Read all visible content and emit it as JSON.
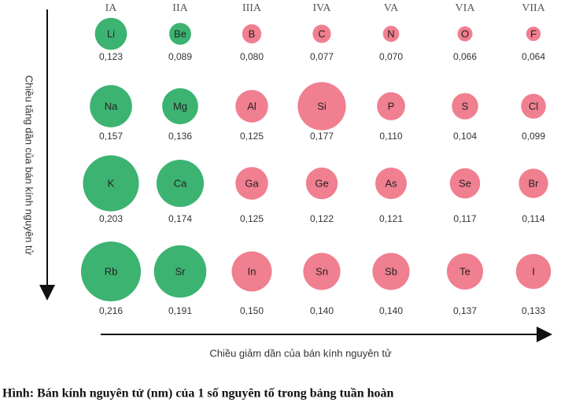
{
  "groups": [
    {
      "name": "IA",
      "color": "#3cb371"
    },
    {
      "name": "IIA",
      "color": "#3cb371"
    },
    {
      "name": "IIIA",
      "color": "#f07f90"
    },
    {
      "name": "IVA",
      "color": "#f07f90"
    },
    {
      "name": "VA",
      "color": "#f07f90"
    },
    {
      "name": "VIA",
      "color": "#f07f90"
    },
    {
      "name": "VIIA",
      "color": "#f07f90"
    }
  ],
  "rows": [
    [
      {
        "symbol": "Li",
        "radius": "0,123"
      },
      {
        "symbol": "Be",
        "radius": "0,089"
      },
      {
        "symbol": "B",
        "radius": "0,080"
      },
      {
        "symbol": "C",
        "radius": "0,077"
      },
      {
        "symbol": "N",
        "radius": "0,070"
      },
      {
        "symbol": "O",
        "radius": "0,066"
      },
      {
        "symbol": "F",
        "radius": "0,064"
      }
    ],
    [
      {
        "symbol": "Na",
        "radius": "0,157"
      },
      {
        "symbol": "Mg",
        "radius": "0,136"
      },
      {
        "symbol": "Al",
        "radius": "0,125"
      },
      {
        "symbol": "Si",
        "radius": "0,177"
      },
      {
        "symbol": "P",
        "radius": "0,110"
      },
      {
        "symbol": "S",
        "radius": "0,104"
      },
      {
        "symbol": "Cl",
        "radius": "0,099"
      }
    ],
    [
      {
        "symbol": "K",
        "radius": "0,203"
      },
      {
        "symbol": "Ca",
        "radius": "0,174"
      },
      {
        "symbol": "Ga",
        "radius": "0,125"
      },
      {
        "symbol": "Ge",
        "radius": "0,122"
      },
      {
        "symbol": "As",
        "radius": "0,121"
      },
      {
        "symbol": "Se",
        "radius": "0,117"
      },
      {
        "symbol": "Br",
        "radius": "0,114"
      }
    ],
    [
      {
        "symbol": "Rb",
        "radius": "0,216"
      },
      {
        "symbol": "Sr",
        "radius": "0,191"
      },
      {
        "symbol": "In",
        "radius": "0,150"
      },
      {
        "symbol": "Sn",
        "radius": "0,140"
      },
      {
        "symbol": "Sb",
        "radius": "0,140"
      },
      {
        "symbol": "Te",
        "radius": "0,137"
      },
      {
        "symbol": "I",
        "radius": "0,133"
      }
    ]
  ],
  "vertical_label": "Chiều tăng dần của bán kính nguyên tử",
  "horizontal_label": "Chiều giảm dần của bán kính nguyên tử",
  "caption": "Hình: Bán kính nguyên tử (nm) của 1 số nguyên tố trong bảng tuần hoàn"
}
